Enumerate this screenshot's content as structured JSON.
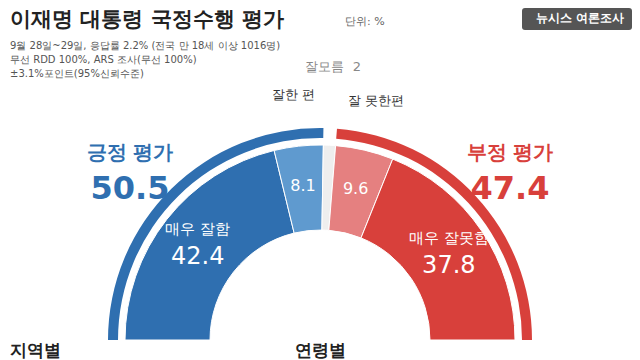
{
  "chart_data": {
    "type": "pie",
    "title": "이재명 대통령 국정수행 평가",
    "subtitle": "단위: %",
    "source": "뉴시스 여론조사",
    "notes": [
      "9월 28일~29일, 응답률 2.2% (전국 만 18세 이상 1016명)",
      "무선 RDD 100%, ARS 조사(무선 100%)",
      "±3.1%포인트(95%신뢰수준)"
    ],
    "footer": [
      "지역별",
      "연령별"
    ],
    "data_labels": true,
    "series": [
      {
        "categories": [
          "긍정 평가",
          "잘모름",
          "부정 평가"
        ],
        "values": [
          50.5,
          2,
          47.4
        ],
        "colors": [
          "#2f6fb0",
          "#ffffff",
          "#d8403b"
        ]
      },
      {
        "categories": [
          "매우 잘함",
          "잘한 편",
          "잘모름",
          "잘 못한편",
          "매우 잘못함"
        ],
        "values": [
          42.4,
          8.1,
          2,
          9.6,
          37.8
        ],
        "colors": [
          "#2f6fb0",
          "#5f9acf",
          "#eeeeee",
          "#e58080",
          "#d8403b"
        ]
      }
    ]
  }
}
